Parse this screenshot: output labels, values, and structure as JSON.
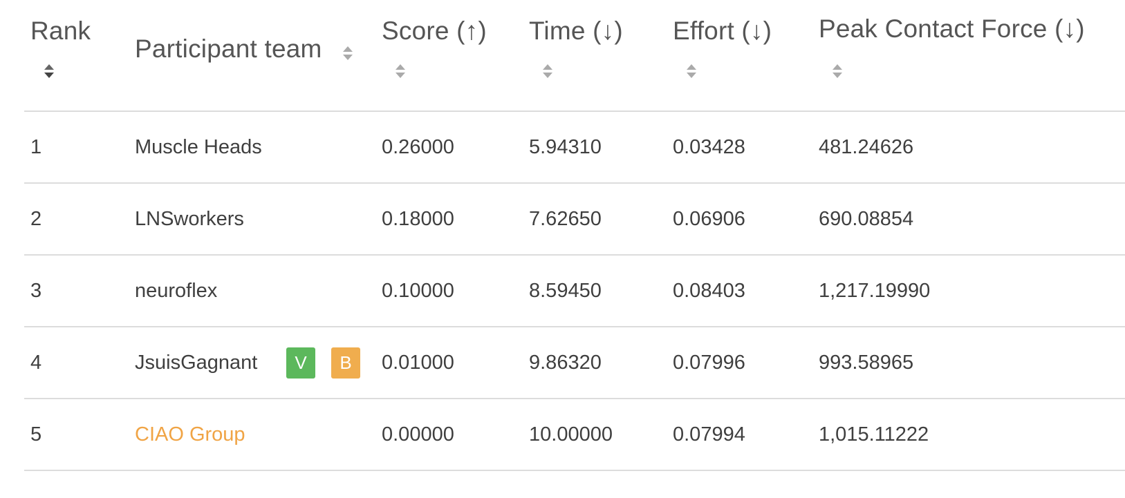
{
  "colors": {
    "text": "#3f3f3f",
    "header_text": "#555555",
    "divider": "#dcdcdc",
    "link_team": "#f0a445",
    "badge_v": "#5cb85c",
    "badge_b": "#f0ad4e"
  },
  "table": {
    "columns": [
      {
        "label": "Rank",
        "sort_icon": "sort-icon"
      },
      {
        "label": "Participant team",
        "sort_icon": "sort-icon"
      },
      {
        "label": "Score (↑)",
        "sort_icon": "sort-icon"
      },
      {
        "label": "Time (↓)",
        "sort_icon": "sort-icon"
      },
      {
        "label": "Effort (↓)",
        "sort_icon": "sort-icon"
      },
      {
        "label": "Peak Contact Force (↓)",
        "sort_icon": "sort-icon"
      }
    ],
    "rows": [
      {
        "rank": "1",
        "team": "Muscle Heads",
        "score": "0.26000",
        "time": "5.94310",
        "effort": "0.03428",
        "peak": "481.24626",
        "team_is_link": false,
        "badges": []
      },
      {
        "rank": "2",
        "team": "LNSworkers",
        "score": "0.18000",
        "time": "7.62650",
        "effort": "0.06906",
        "peak": "690.08854",
        "team_is_link": false,
        "badges": []
      },
      {
        "rank": "3",
        "team": "neuroflex",
        "score": "0.10000",
        "time": "8.59450",
        "effort": "0.08403",
        "peak": "1,217.19990",
        "team_is_link": false,
        "badges": []
      },
      {
        "rank": "4",
        "team": "JsuisGagnant",
        "score": "0.01000",
        "time": "9.86320",
        "effort": "0.07996",
        "peak": "993.58965",
        "team_is_link": false,
        "badges": [
          "V",
          "B"
        ]
      },
      {
        "rank": "5",
        "team": "CIAO Group",
        "score": "0.00000",
        "time": "10.00000",
        "effort": "0.07994",
        "peak": "1,015.11222",
        "team_is_link": true,
        "badges": []
      }
    ]
  }
}
